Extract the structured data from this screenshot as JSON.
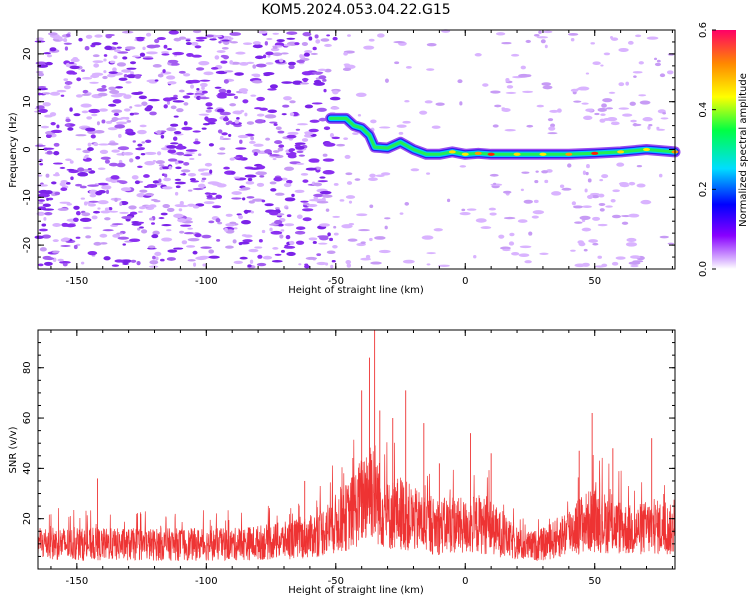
{
  "title": "KOM5.2024.053.04.22.G15",
  "chart_data": [
    {
      "type": "heatmap",
      "xlabel": "Height of straight line (km)",
      "ylabel": "Frequency (Hz)",
      "xlim": [
        -165,
        81
      ],
      "ylim": [
        -25,
        25
      ],
      "xticks": [
        -150,
        -100,
        -50,
        0,
        50
      ],
      "yticks": [
        -20,
        -10,
        0,
        10,
        20
      ],
      "colorbar": {
        "label": "Normalized spectral amplitude",
        "range": [
          0,
          0.6
        ],
        "ticks": [
          "0.0",
          "0.2",
          "0.4",
          "0.6"
        ],
        "colormap": "rainbow"
      },
      "ridge": [
        {
          "x": -52,
          "y": 6.5
        },
        {
          "x": -46,
          "y": 6.5
        },
        {
          "x": -43,
          "y": 5
        },
        {
          "x": -40,
          "y": 4.5
        },
        {
          "x": -37,
          "y": 3
        },
        {
          "x": -35,
          "y": 0.5
        },
        {
          "x": -30,
          "y": 0.3
        },
        {
          "x": -25,
          "y": 1.5
        },
        {
          "x": -20,
          "y": 0
        },
        {
          "x": -15,
          "y": -1
        },
        {
          "x": -10,
          "y": -1
        },
        {
          "x": -5,
          "y": -0.5
        },
        {
          "x": 0,
          "y": -1
        },
        {
          "x": 5,
          "y": -0.8
        },
        {
          "x": 10,
          "y": -1
        },
        {
          "x": 20,
          "y": -1
        },
        {
          "x": 30,
          "y": -1
        },
        {
          "x": 40,
          "y": -1
        },
        {
          "x": 50,
          "y": -0.8
        },
        {
          "x": 60,
          "y": -0.5
        },
        {
          "x": 70,
          "y": 0
        },
        {
          "x": 81,
          "y": -0.5
        }
      ]
    },
    {
      "type": "line",
      "xlabel": "Height of straight line (km)",
      "ylabel": "SNR (v/v)",
      "xlim": [
        -165,
        81
      ],
      "ylim": [
        0,
        95
      ],
      "xticks": [
        -150,
        -100,
        -50,
        0,
        50
      ],
      "yticks": [
        20,
        40,
        60,
        80
      ],
      "series": [
        {
          "color": "#ee3333",
          "envelope_x": [
            -165,
            -150,
            -130,
            -110,
            -90,
            -70,
            -60,
            -55,
            -50,
            -45,
            -40,
            -37,
            -35,
            -33,
            -30,
            -25,
            -20,
            -15,
            -10,
            -5,
            0,
            5,
            10,
            15,
            20,
            25,
            30,
            35,
            40,
            45,
            50,
            55,
            60,
            65,
            70,
            75,
            81
          ],
          "envelope_y": [
            14,
            13,
            13,
            13,
            13,
            15,
            17,
            20,
            24,
            28,
            36,
            45,
            42,
            34,
            28,
            30,
            26,
            24,
            22,
            24,
            22,
            24,
            22,
            17,
            13,
            12,
            13,
            16,
            20,
            24,
            26,
            24,
            22,
            20,
            22,
            22,
            20
          ],
          "peaks": [
            {
              "x": -37,
              "y": 84
            },
            {
              "x": -35,
              "y": 95
            },
            {
              "x": -40,
              "y": 71
            },
            {
              "x": -33,
              "y": 63
            },
            {
              "x": -23,
              "y": 71
            },
            {
              "x": -28,
              "y": 60
            },
            {
              "x": -16,
              "y": 58
            },
            {
              "x": 2,
              "y": 54
            },
            {
              "x": 10,
              "y": 46
            },
            {
              "x": -10,
              "y": 42
            },
            {
              "x": 49,
              "y": 62
            },
            {
              "x": 72,
              "y": 52
            },
            {
              "x": 44,
              "y": 47
            },
            {
              "x": 57,
              "y": 48
            },
            {
              "x": -142,
              "y": 36
            },
            {
              "x": -62,
              "y": 35
            }
          ]
        }
      ]
    }
  ]
}
